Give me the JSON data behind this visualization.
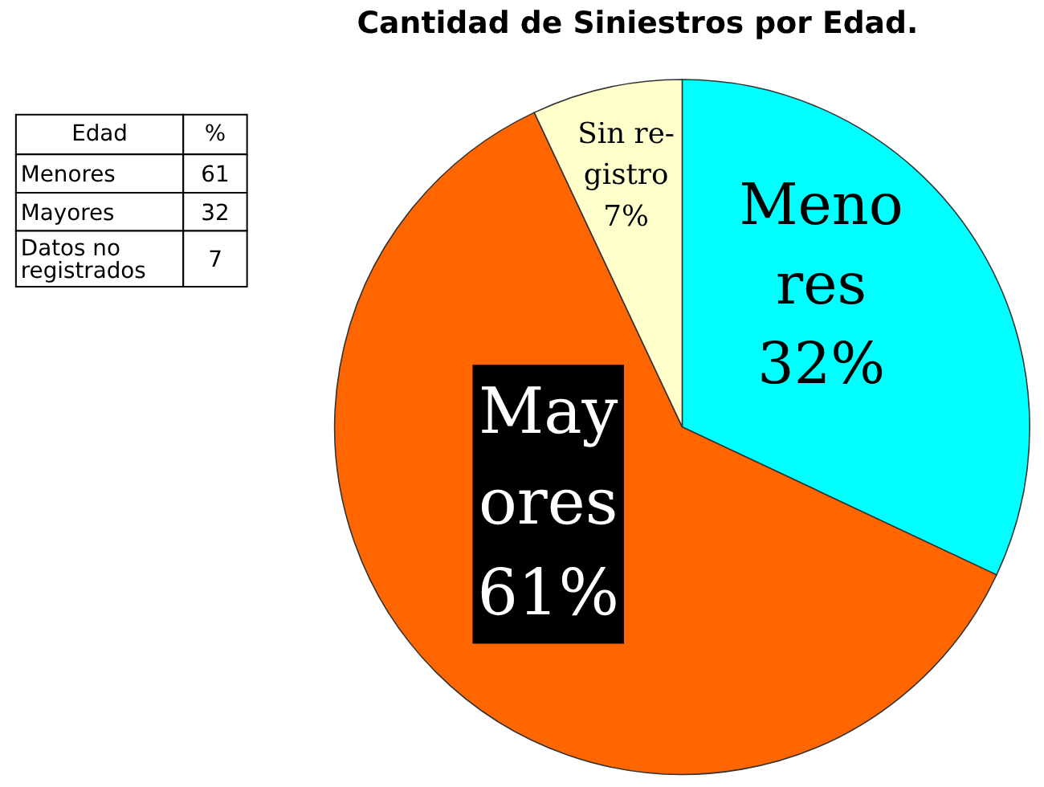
{
  "chart_data": [
    {
      "type": "other",
      "xlabel": "Edad",
      "ylabel": "%",
      "categories": [
        "Menores",
        "Mayores",
        "Datos no registrados"
      ],
      "values": [
        61,
        32,
        7
      ],
      "data_labels": true
    },
    {
      "type": "pie",
      "title": "Cantidad de Siniestros por Edad.",
      "categories": [
        "Meno\nres",
        "May\nores",
        "Sin re-\ngistro"
      ],
      "values": [
        32,
        61,
        7
      ],
      "colors": [
        "#00ffff",
        "#ff6600",
        "#ffffcc"
      ],
      "value_labels": [
        "32%",
        "61%",
        "7%"
      ]
    }
  ]
}
